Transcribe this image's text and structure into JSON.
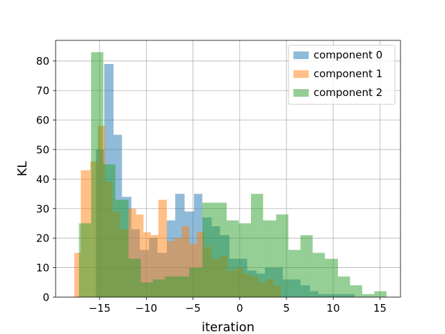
{
  "chart_data": {
    "type": "histogram",
    "title": "",
    "xlabel": "iteration",
    "ylabel": "KL",
    "xlim": [
      -19.7,
      17.2
    ],
    "ylim": [
      0,
      87
    ],
    "xticks": [
      -15,
      -10,
      -5,
      0,
      5,
      10,
      15
    ],
    "xtick_labels": [
      "−15",
      "−10",
      "−5",
      "0",
      "5",
      "10",
      "15"
    ],
    "yticks": [
      0,
      10,
      20,
      30,
      40,
      50,
      60,
      70,
      80
    ],
    "ytick_labels": [
      "0",
      "10",
      "20",
      "30",
      "40",
      "50",
      "60",
      "70",
      "80"
    ],
    "grid": true,
    "legend_position": "top-right",
    "series": [
      {
        "name": "component 0",
        "color": "#1f77b4",
        "opacity": 0.5,
        "bins": [
          [
            -15.4,
            -14.5,
            50
          ],
          [
            -14.5,
            -13.5,
            79
          ],
          [
            -13.5,
            -12.6,
            55
          ],
          [
            -12.6,
            -11.6,
            34
          ],
          [
            -11.6,
            -10.7,
            23
          ],
          [
            -10.7,
            -9.7,
            16
          ],
          [
            -9.7,
            -8.8,
            20
          ],
          [
            -8.8,
            -7.8,
            15
          ],
          [
            -7.8,
            -6.9,
            26
          ],
          [
            -6.9,
            -5.9,
            35
          ],
          [
            -5.9,
            -4.9,
            29
          ],
          [
            -4.9,
            -4.0,
            35
          ],
          [
            -4.0,
            -3.0,
            27
          ],
          [
            -3.0,
            -2.1,
            24
          ],
          [
            -2.1,
            -1.1,
            21
          ],
          [
            -1.1,
            -0.2,
            13
          ],
          [
            -0.2,
            0.8,
            13
          ],
          [
            0.8,
            1.8,
            9
          ],
          [
            1.8,
            2.7,
            8
          ],
          [
            2.7,
            3.7,
            10
          ],
          [
            3.7,
            4.6,
            10
          ],
          [
            4.6,
            5.6,
            6
          ],
          [
            5.6,
            6.5,
            6
          ],
          [
            6.5,
            7.5,
            4
          ],
          [
            7.5,
            8.4,
            2
          ],
          [
            8.4,
            9.4,
            1
          ],
          [
            9.4,
            10.4,
            1
          ],
          [
            10.4,
            11.3,
            1
          ],
          [
            11.3,
            12.3,
            1
          ]
        ]
      },
      {
        "name": "component 1",
        "color": "#ff7f0e",
        "opacity": 0.5,
        "bins": [
          [
            -17.7,
            -17.0,
            15
          ],
          [
            -17.0,
            -16.0,
            43
          ],
          [
            -16.0,
            -15.2,
            46
          ],
          [
            -15.2,
            -14.4,
            58
          ],
          [
            -14.4,
            -13.6,
            39
          ],
          [
            -13.6,
            -12.8,
            29
          ],
          [
            -12.8,
            -11.9,
            23
          ],
          [
            -11.9,
            -11.1,
            30
          ],
          [
            -11.1,
            -10.3,
            28
          ],
          [
            -10.3,
            -9.5,
            22
          ],
          [
            -9.5,
            -8.7,
            21
          ],
          [
            -8.7,
            -7.8,
            33
          ],
          [
            -7.8,
            -7.0,
            19
          ],
          [
            -7.0,
            -6.2,
            20
          ],
          [
            -6.2,
            -5.4,
            24
          ],
          [
            -5.4,
            -4.6,
            18
          ],
          [
            -4.6,
            -3.8,
            22
          ],
          [
            -3.8,
            -3.0,
            17
          ],
          [
            -3.0,
            -2.1,
            13
          ],
          [
            -2.1,
            -1.3,
            14
          ],
          [
            -1.3,
            -0.5,
            9
          ],
          [
            -0.5,
            0.3,
            10
          ],
          [
            0.3,
            1.1,
            8
          ],
          [
            1.1,
            2.0,
            7
          ],
          [
            2.0,
            2.8,
            5
          ],
          [
            2.8,
            3.6,
            6
          ],
          [
            3.6,
            4.4,
            4
          ]
        ]
      },
      {
        "name": "component 2",
        "color": "#2ca02c",
        "opacity": 0.5,
        "bins": [
          [
            -17.2,
            -15.9,
            25
          ],
          [
            -15.9,
            -14.6,
            83
          ],
          [
            -14.6,
            -13.3,
            45
          ],
          [
            -13.3,
            -11.9,
            33
          ],
          [
            -11.9,
            -10.6,
            13
          ],
          [
            -10.6,
            -9.3,
            5
          ],
          [
            -9.3,
            -8.0,
            6
          ],
          [
            -8.0,
            -6.7,
            7
          ],
          [
            -6.7,
            -5.4,
            7
          ],
          [
            -5.4,
            -4.0,
            10
          ],
          [
            -4.0,
            -2.7,
            32
          ],
          [
            -2.7,
            -1.4,
            32
          ],
          [
            -1.4,
            -0.1,
            26
          ],
          [
            -0.1,
            1.2,
            25
          ],
          [
            1.2,
            2.5,
            35
          ],
          [
            2.5,
            3.9,
            26
          ],
          [
            3.9,
            5.2,
            28
          ],
          [
            5.2,
            6.5,
            16
          ],
          [
            6.5,
            7.8,
            21
          ],
          [
            7.8,
            9.1,
            15
          ],
          [
            9.1,
            10.5,
            13
          ],
          [
            10.5,
            11.8,
            7
          ],
          [
            11.8,
            13.1,
            4
          ],
          [
            13.1,
            14.4,
            1
          ],
          [
            14.4,
            15.7,
            2
          ]
        ]
      }
    ]
  }
}
